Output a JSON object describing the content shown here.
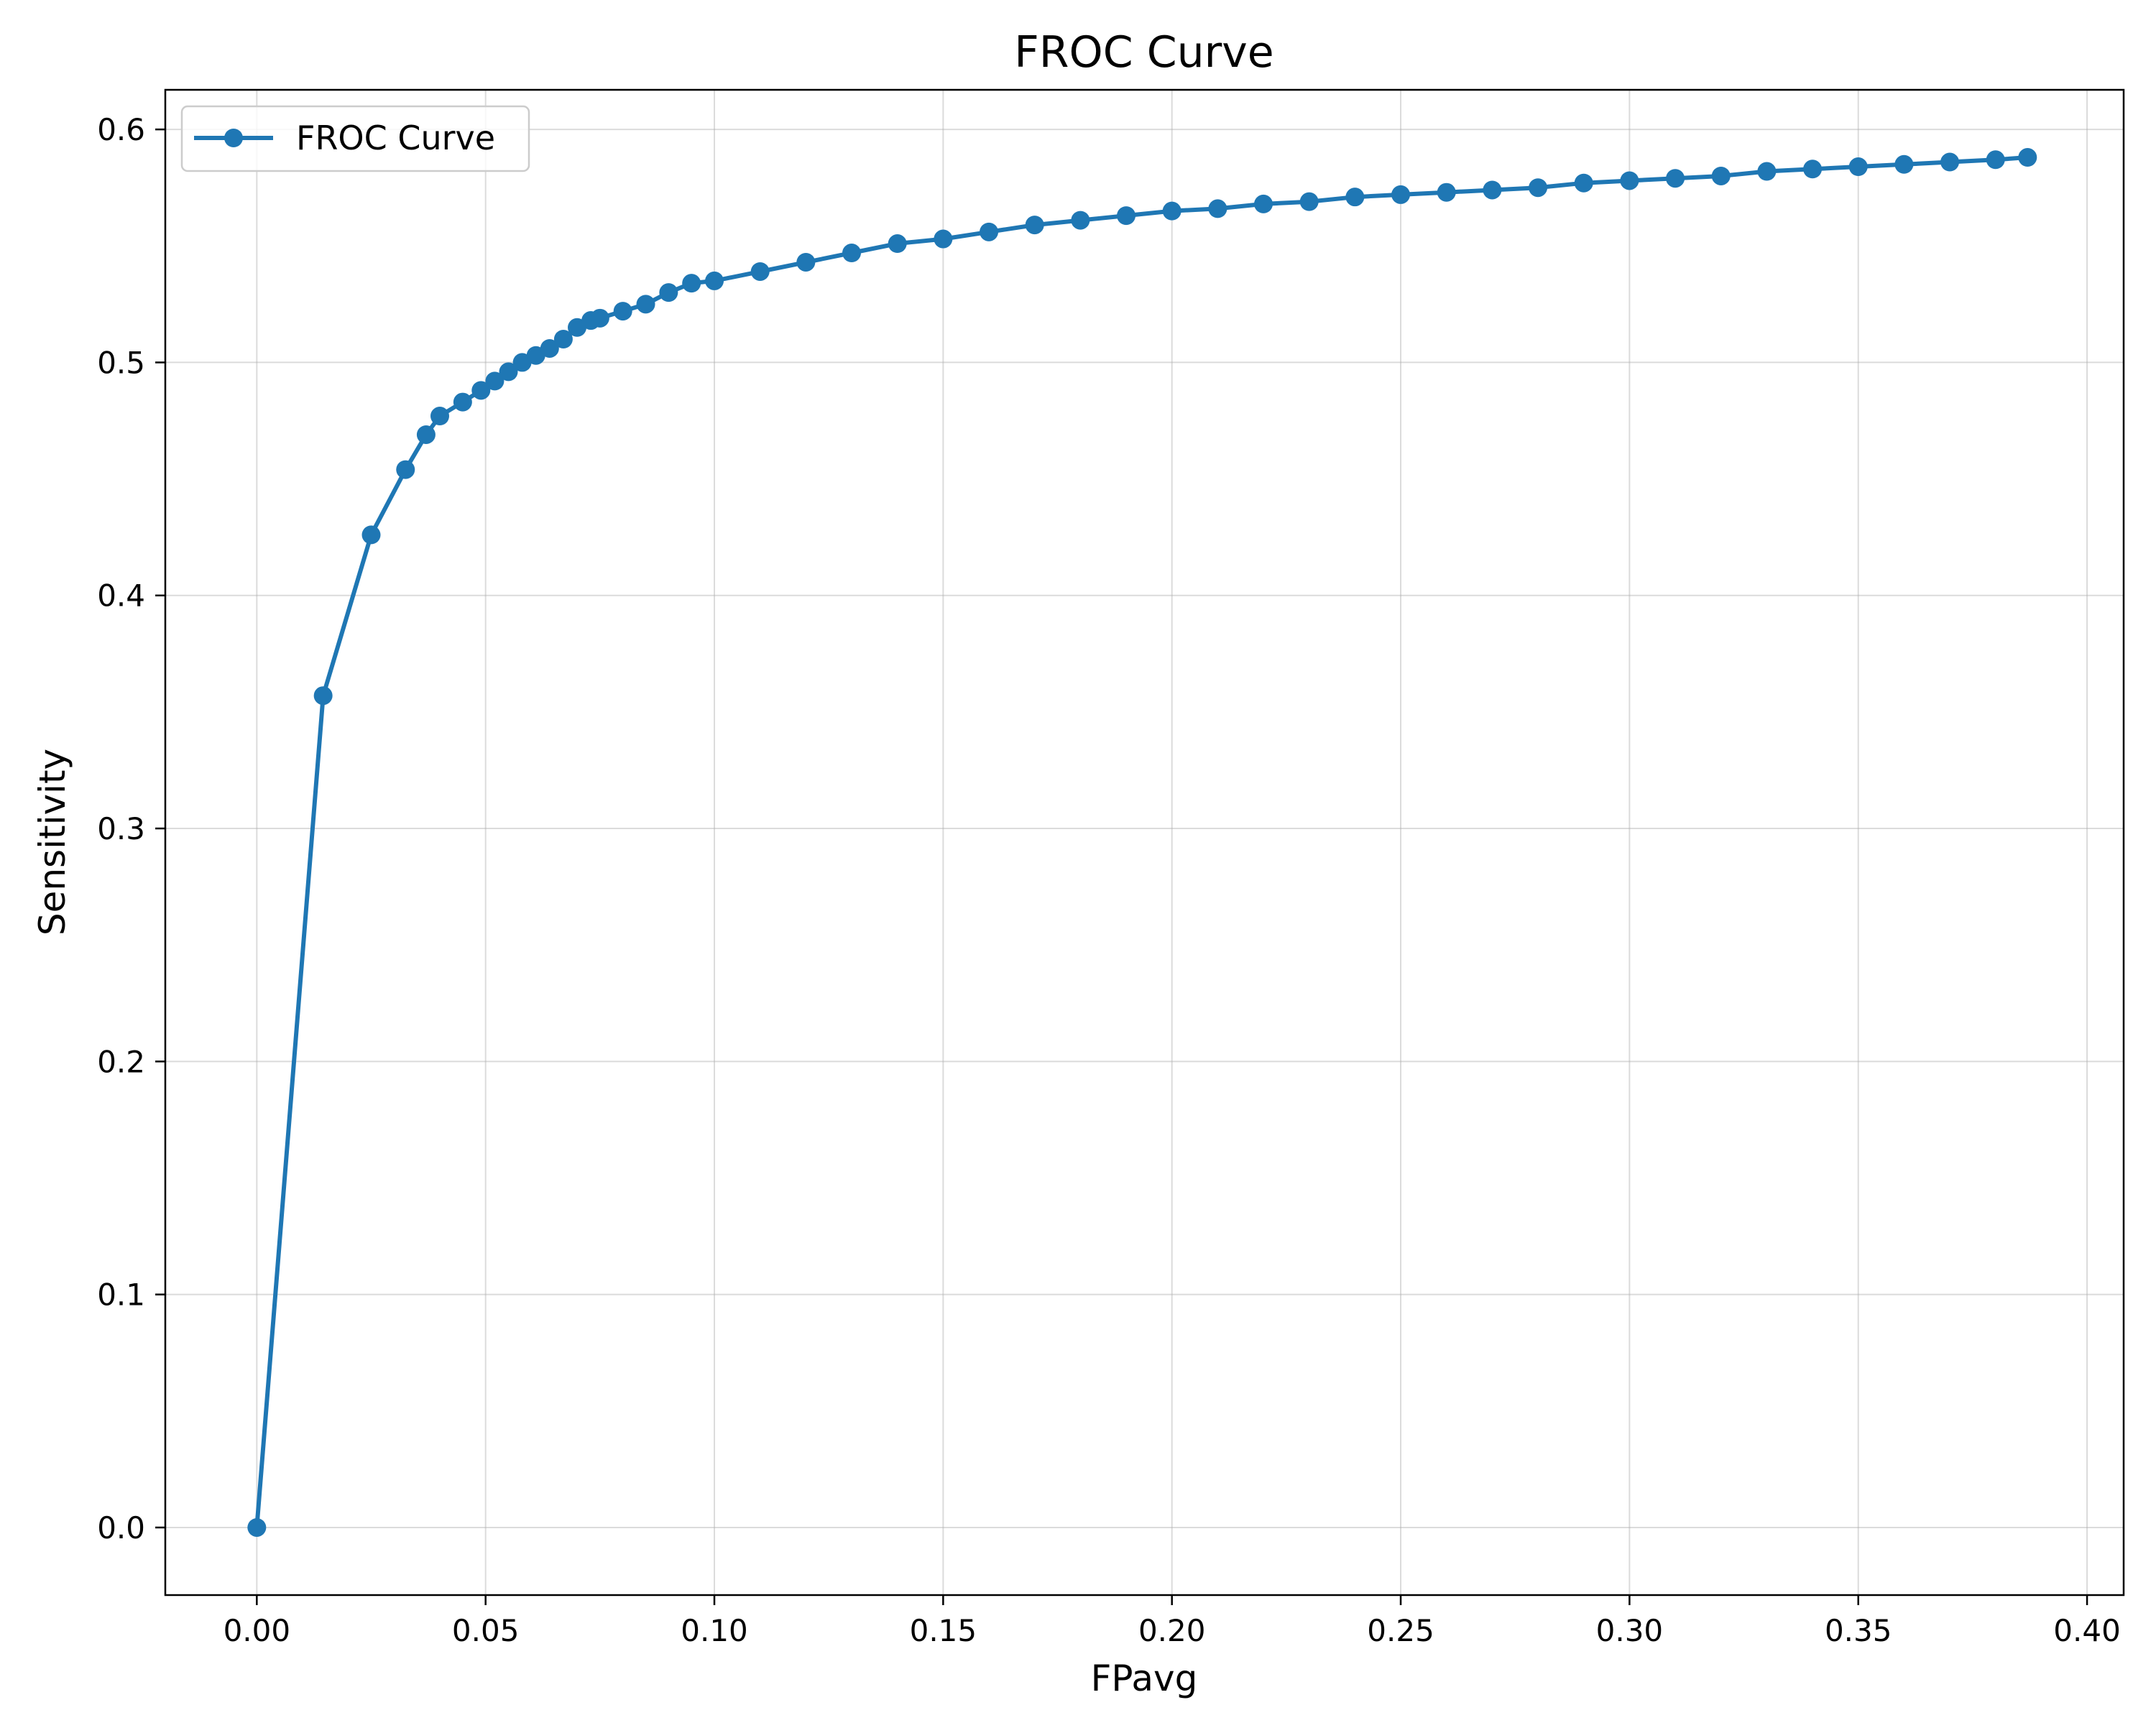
{
  "chart_data": {
    "type": "line",
    "title": "FROC Curve",
    "xlabel": "FPavg",
    "ylabel": "Sensitivity",
    "xlim": [
      -0.02,
      0.408
    ],
    "ylim": [
      -0.029,
      0.617
    ],
    "xticks": [
      0.0,
      0.05,
      0.1,
      0.15,
      0.2,
      0.25,
      0.3,
      0.35,
      0.4
    ],
    "xtick_labels": [
      "0.00",
      "0.05",
      "0.10",
      "0.15",
      "0.20",
      "0.25",
      "0.30",
      "0.35",
      "0.40"
    ],
    "yticks": [
      0.0,
      0.1,
      0.2,
      0.3,
      0.4,
      0.5,
      0.6
    ],
    "ytick_labels": [
      "0.0",
      "0.1",
      "0.2",
      "0.3",
      "0.4",
      "0.5",
      "0.6"
    ],
    "grid": true,
    "legend_position": "top-left",
    "colors": {
      "series": "#1f77b4",
      "grid": "#b0b0b0",
      "axes": "#000000"
    },
    "series": [
      {
        "name": "FROC Curve",
        "marker": "circle",
        "x": [
          0.0,
          0.0145,
          0.025,
          0.0325,
          0.037,
          0.04,
          0.045,
          0.049,
          0.052,
          0.055,
          0.058,
          0.061,
          0.064,
          0.067,
          0.07,
          0.073,
          0.075,
          0.08,
          0.085,
          0.09,
          0.095,
          0.1,
          0.11,
          0.12,
          0.13,
          0.14,
          0.15,
          0.16,
          0.17,
          0.18,
          0.19,
          0.2,
          0.21,
          0.22,
          0.23,
          0.24,
          0.25,
          0.26,
          0.27,
          0.28,
          0.29,
          0.3,
          0.31,
          0.32,
          0.33,
          0.34,
          0.35,
          0.36,
          0.37,
          0.38,
          0.387
        ],
        "y": [
          0.0,
          0.357,
          0.426,
          0.454,
          0.469,
          0.477,
          0.483,
          0.488,
          0.492,
          0.496,
          0.5,
          0.503,
          0.506,
          0.51,
          0.515,
          0.518,
          0.519,
          0.522,
          0.525,
          0.53,
          0.534,
          0.535,
          0.539,
          0.543,
          0.547,
          0.551,
          0.553,
          0.556,
          0.559,
          0.561,
          0.563,
          0.565,
          0.566,
          0.568,
          0.569,
          0.571,
          0.572,
          0.573,
          0.574,
          0.575,
          0.577,
          0.578,
          0.579,
          0.58,
          0.582,
          0.583,
          0.584,
          0.585,
          0.586,
          0.587,
          0.588
        ]
      }
    ]
  }
}
